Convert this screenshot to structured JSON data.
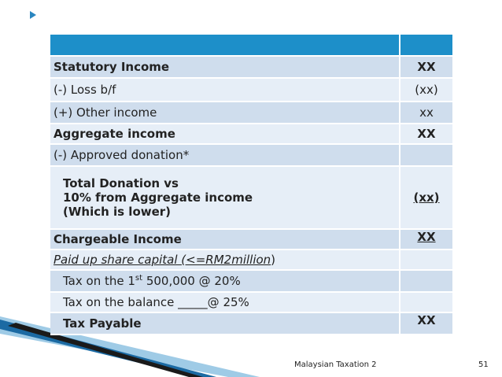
{
  "header": {
    "left": "",
    "right": ""
  },
  "rows": [
    {
      "label": "Statutory Income",
      "value": "XX"
    },
    {
      "label": "(-) Loss b/f",
      "value": "(xx)"
    },
    {
      "label": "(+) Other income",
      "value": "xx"
    },
    {
      "label": "Aggregate income",
      "value": "XX"
    },
    {
      "label": "(-) Approved donation*",
      "value": ""
    },
    {
      "label_lines": [
        "Total Donation vs",
        "10% from Aggregate income",
        "(Which is lower)"
      ],
      "value": "(xx)"
    },
    {
      "label": "Chargeable Income",
      "value": "XX"
    },
    {
      "label_main": "Paid up share capital (<=RM2million",
      "label_tail": ")",
      "value": ""
    },
    {
      "label_pre": "Tax on the 1",
      "label_sup": "st",
      "label_post": " 500,000 @ 20%",
      "value": ""
    },
    {
      "label": "Tax on the balance _____@ 25%",
      "value": ""
    },
    {
      "label": "Tax Payable",
      "value": "XX"
    }
  ],
  "footer": {
    "title": "Malaysian Taxation 2",
    "page": "51"
  },
  "colors": {
    "header": "#1d8fc9",
    "row_light": "#e6eef7",
    "row_mid": "#cfdded",
    "accent": "#2a86c0"
  }
}
